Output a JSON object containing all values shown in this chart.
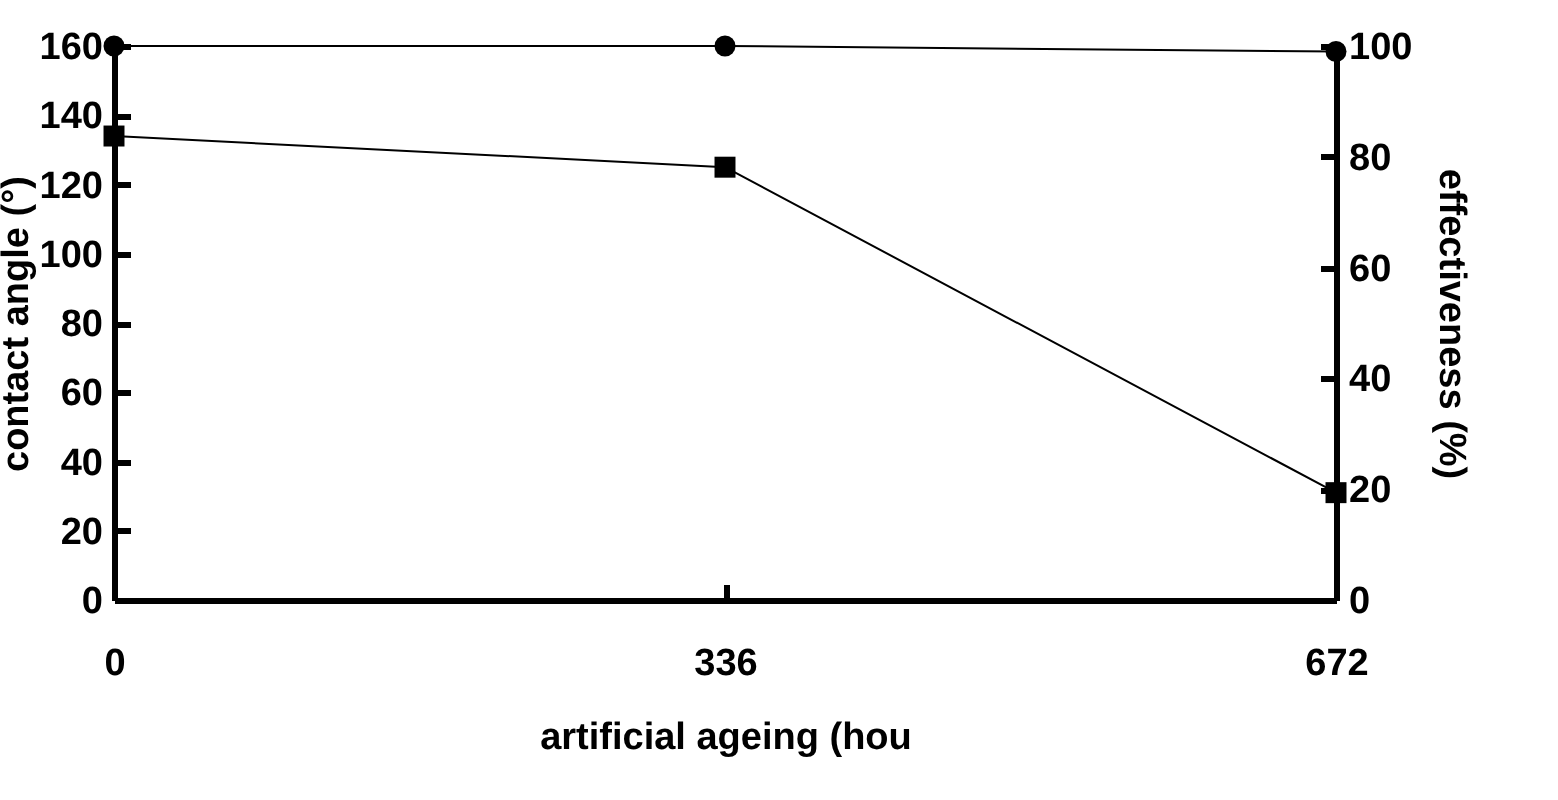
{
  "chart_data": {
    "type": "line",
    "xlabel": "artificial ageing (hou",
    "ylabel": "contact angle (°)",
    "y2label": "effectiveness (%)",
    "x": [
      0,
      336,
      672
    ],
    "xlim": [
      0,
      672
    ],
    "xticks": [
      0,
      336,
      672
    ],
    "ylim": [
      0,
      160
    ],
    "yticks": [
      0,
      20,
      40,
      60,
      80,
      100,
      120,
      140,
      160
    ],
    "y2lim": [
      0,
      100
    ],
    "y2ticks": [
      0,
      20,
      40,
      60,
      80,
      100
    ],
    "grid": false,
    "line_style": "solid",
    "series": [
      {
        "color": "#000000",
        "marker": "square",
        "values": [
          134,
          125,
          31
        ]
      },
      {
        "color": "#000000",
        "marker": "circle",
        "axis": "y2",
        "values": [
          100,
          100,
          99
        ]
      }
    ]
  }
}
